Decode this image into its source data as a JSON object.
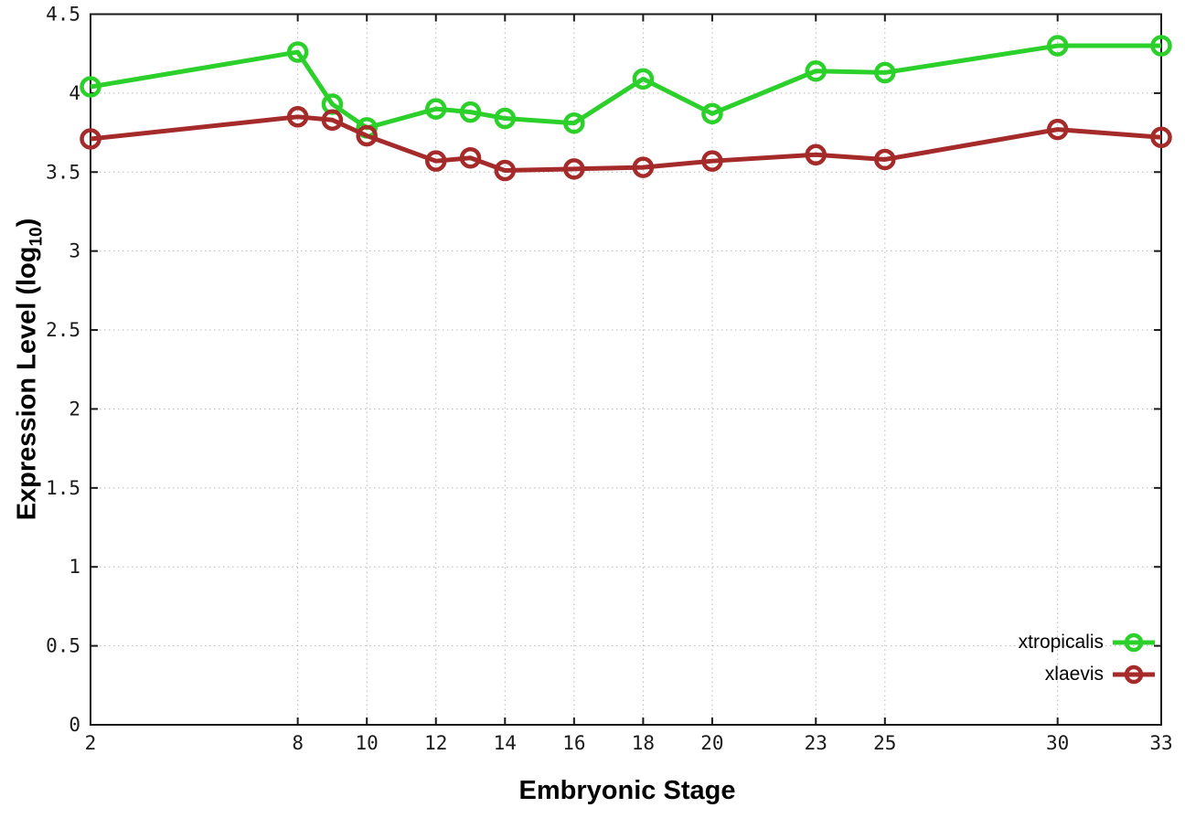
{
  "chart_data": {
    "type": "line",
    "title": "",
    "xlabel": "Embryonic Stage",
    "ylabel": "Expression Level (log10)",
    "ylabel_parts": {
      "prefix": "Expression Level (log",
      "sub": "10",
      "suffix": ")"
    },
    "x": [
      2,
      8,
      9,
      10,
      12,
      13,
      14,
      16,
      18,
      20,
      23,
      25,
      30,
      33
    ],
    "x_tick_labels": [
      2,
      8,
      10,
      12,
      14,
      16,
      18,
      20,
      23,
      25,
      30,
      33
    ],
    "y_tick_labels": [
      "0",
      "0.5",
      "1",
      "1.5",
      "2",
      "2.5",
      "3",
      "3.5",
      "4",
      "4.5"
    ],
    "y_ticks": [
      0,
      0.5,
      1,
      1.5,
      2,
      2.5,
      3,
      3.5,
      4,
      4.5
    ],
    "xlim": [
      2,
      33
    ],
    "ylim": [
      0,
      4.5
    ],
    "grid": true,
    "legend_position": "bottom-right-inside",
    "marker": "open-circle",
    "series": [
      {
        "name": "xtropicalis",
        "color": "#2bd02b",
        "values": [
          4.04,
          4.26,
          3.93,
          3.78,
          3.9,
          3.88,
          3.84,
          3.81,
          4.09,
          3.87,
          4.14,
          4.13,
          4.3,
          4.3
        ]
      },
      {
        "name": "xlaevis",
        "color": "#a52a2a",
        "values": [
          3.71,
          3.85,
          3.83,
          3.73,
          3.57,
          3.59,
          3.51,
          3.52,
          3.53,
          3.57,
          3.61,
          3.58,
          3.77,
          3.72
        ]
      }
    ]
  }
}
